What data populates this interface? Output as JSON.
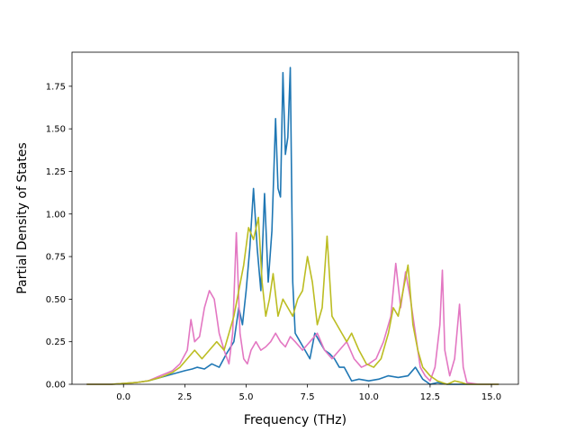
{
  "chart_data": {
    "type": "line",
    "title": "",
    "xlabel": "Frequency (THz)",
    "ylabel": "Partial Density of States",
    "xlim": [
      -2.1,
      16.1
    ],
    "ylim": [
      0,
      1.95
    ],
    "xticks": [
      0.0,
      2.5,
      5.0,
      7.5,
      10.0,
      12.5,
      15.0
    ],
    "xtick_labels": [
      "0.0",
      "2.5",
      "5.0",
      "7.5",
      "10.0",
      "12.5",
      "15.0"
    ],
    "yticks": [
      0.0,
      0.25,
      0.5,
      0.75,
      1.0,
      1.25,
      1.5,
      1.75
    ],
    "ytick_labels": [
      "0.00",
      "0.25",
      "0.50",
      "0.75",
      "1.00",
      "1.25",
      "1.50",
      "1.75"
    ],
    "grid": false,
    "legend": "none",
    "series": [
      {
        "color": "#1f77b4",
        "x": [
          -1.5,
          -0.5,
          0.0,
          0.5,
          1.0,
          1.5,
          2.0,
          2.5,
          2.8,
          3.0,
          3.3,
          3.6,
          3.9,
          4.2,
          4.5,
          4.7,
          4.85,
          5.0,
          5.15,
          5.3,
          5.45,
          5.6,
          5.75,
          5.9,
          6.05,
          6.2,
          6.3,
          6.4,
          6.5,
          6.6,
          6.7,
          6.8,
          6.9,
          7.0,
          7.2,
          7.4,
          7.6,
          7.8,
          8.0,
          8.2,
          8.4,
          8.6,
          8.8,
          9.0,
          9.3,
          9.6,
          10.0,
          10.4,
          10.8,
          11.2,
          11.6,
          11.9,
          12.2,
          12.5,
          12.8,
          13.2,
          13.6,
          14.0,
          14.5,
          15.0,
          15.3
        ],
        "y": [
          0.0,
          0.0,
          0.005,
          0.01,
          0.02,
          0.04,
          0.06,
          0.08,
          0.09,
          0.1,
          0.09,
          0.12,
          0.1,
          0.18,
          0.25,
          0.45,
          0.35,
          0.55,
          0.8,
          1.15,
          0.8,
          0.55,
          1.12,
          0.6,
          0.9,
          1.56,
          1.15,
          1.1,
          1.83,
          1.35,
          1.45,
          1.86,
          0.6,
          0.3,
          0.25,
          0.2,
          0.15,
          0.3,
          0.25,
          0.2,
          0.18,
          0.15,
          0.1,
          0.1,
          0.02,
          0.03,
          0.02,
          0.03,
          0.05,
          0.04,
          0.05,
          0.1,
          0.03,
          0.0,
          0.01,
          0.0,
          0.0,
          0.0,
          0.0,
          0.0,
          0.0
        ]
      },
      {
        "color": "#e377c2",
        "x": [
          -1.5,
          -0.5,
          0.0,
          0.5,
          1.0,
          1.5,
          2.0,
          2.3,
          2.6,
          2.75,
          2.9,
          3.1,
          3.3,
          3.5,
          3.7,
          3.9,
          4.1,
          4.3,
          4.45,
          4.6,
          4.75,
          4.9,
          5.05,
          5.2,
          5.4,
          5.6,
          5.8,
          6.0,
          6.2,
          6.4,
          6.6,
          6.8,
          7.0,
          7.3,
          7.6,
          7.9,
          8.2,
          8.5,
          8.8,
          9.1,
          9.4,
          9.7,
          10.0,
          10.3,
          10.6,
          10.9,
          11.1,
          11.3,
          11.5,
          11.7,
          11.9,
          12.1,
          12.3,
          12.5,
          12.7,
          12.9,
          13.0,
          13.1,
          13.3,
          13.5,
          13.7,
          13.85,
          14.0,
          14.5,
          15.0,
          15.3
        ],
        "y": [
          0.0,
          0.0,
          0.005,
          0.01,
          0.02,
          0.05,
          0.08,
          0.12,
          0.2,
          0.38,
          0.25,
          0.28,
          0.45,
          0.55,
          0.5,
          0.3,
          0.2,
          0.12,
          0.3,
          0.89,
          0.3,
          0.15,
          0.12,
          0.2,
          0.25,
          0.2,
          0.22,
          0.25,
          0.3,
          0.25,
          0.22,
          0.28,
          0.25,
          0.2,
          0.25,
          0.3,
          0.2,
          0.15,
          0.2,
          0.25,
          0.15,
          0.1,
          0.12,
          0.15,
          0.25,
          0.4,
          0.71,
          0.45,
          0.66,
          0.5,
          0.3,
          0.1,
          0.05,
          0.02,
          0.1,
          0.35,
          0.67,
          0.2,
          0.05,
          0.15,
          0.47,
          0.1,
          0.01,
          0.0,
          0.0,
          0.0
        ]
      },
      {
        "color": "#bcbd22",
        "x": [
          -1.5,
          -0.5,
          0.0,
          0.5,
          1.0,
          1.5,
          2.0,
          2.3,
          2.6,
          2.9,
          3.2,
          3.5,
          3.8,
          4.1,
          4.3,
          4.5,
          4.7,
          4.9,
          5.1,
          5.3,
          5.5,
          5.65,
          5.8,
          5.95,
          6.1,
          6.3,
          6.5,
          6.7,
          6.9,
          7.1,
          7.3,
          7.5,
          7.7,
          7.9,
          8.1,
          8.3,
          8.5,
          8.7,
          8.9,
          9.1,
          9.3,
          9.6,
          9.9,
          10.2,
          10.5,
          10.8,
          11.0,
          11.2,
          11.4,
          11.6,
          11.8,
          12.0,
          12.2,
          12.5,
          12.8,
          13.0,
          13.2,
          13.5,
          13.8,
          14.0,
          14.5,
          15.0,
          15.3
        ],
        "y": [
          0.0,
          0.0,
          0.005,
          0.01,
          0.02,
          0.04,
          0.07,
          0.1,
          0.15,
          0.2,
          0.15,
          0.2,
          0.25,
          0.2,
          0.3,
          0.4,
          0.55,
          0.7,
          0.92,
          0.85,
          0.98,
          0.6,
          0.4,
          0.5,
          0.65,
          0.4,
          0.5,
          0.45,
          0.4,
          0.5,
          0.55,
          0.75,
          0.6,
          0.35,
          0.45,
          0.87,
          0.4,
          0.35,
          0.3,
          0.25,
          0.3,
          0.2,
          0.12,
          0.1,
          0.15,
          0.3,
          0.45,
          0.4,
          0.55,
          0.7,
          0.35,
          0.2,
          0.1,
          0.05,
          0.02,
          0.01,
          0.0,
          0.02,
          0.01,
          0.0,
          0.0,
          0.0,
          0.0
        ]
      }
    ]
  }
}
